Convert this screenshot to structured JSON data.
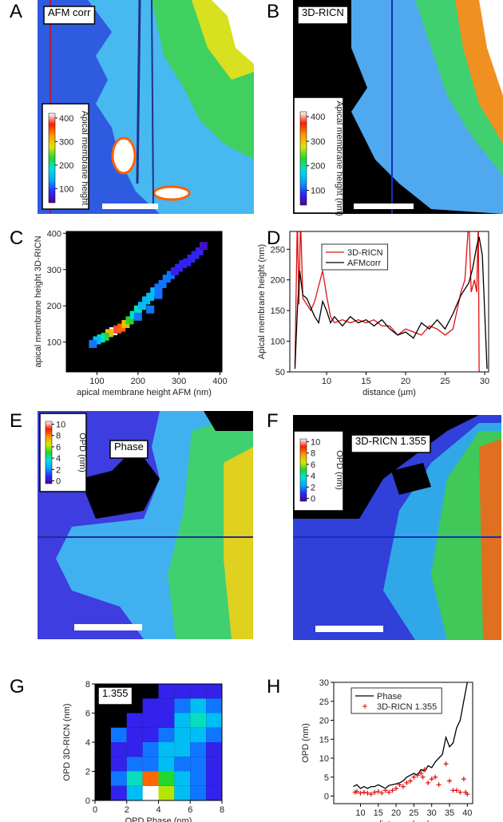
{
  "colormap": [
    "#50009a",
    "#2b2bff",
    "#00a8ff",
    "#00e0e0",
    "#20d830",
    "#d8e800",
    "#ff9a00",
    "#ff1a00",
    "#ffffff"
  ],
  "images": [
    {
      "panel": "A",
      "label": "AFM corr",
      "colorbar": {
        "label": "Apical membrane height",
        "lim": [
          40,
          420
        ],
        "ticks": [
          100,
          200,
          300,
          400
        ]
      }
    },
    {
      "panel": "B",
      "label": "3D-RICN",
      "colorbar": {
        "label": "Apical membrane height (nm)",
        "lim": [
          40,
          420
        ],
        "ticks": [
          100,
          200,
          300,
          400
        ]
      }
    },
    {
      "panel": "E",
      "label": "Phase",
      "colorbar": {
        "label": "OPD (nm)",
        "lim": [
          -0.5,
          10.5
        ],
        "ticks": [
          0,
          2,
          4,
          6,
          8,
          10
        ]
      }
    },
    {
      "panel": "F",
      "label": "3D-RICN 1.355",
      "colorbar": {
        "label": "OPD (nm)",
        "lim": [
          -0.5,
          10.5
        ],
        "ticks": [
          0,
          2,
          4,
          6,
          8,
          10
        ]
      }
    }
  ],
  "chart_data": [
    {
      "panel": "C",
      "type": "scatter",
      "x_label": "apical membrane height AFM (nm)",
      "y_label": "apical membrane height 3D-RICN",
      "x": [
        140,
        150,
        160,
        130,
        170,
        120,
        110,
        180,
        190,
        200,
        210,
        220,
        230,
        240,
        250,
        260,
        270,
        280,
        290,
        300,
        310,
        320,
        330,
        340,
        350,
        360,
        100,
        90,
        200,
        230,
        250
      ],
      "values": [
        130,
        135,
        140,
        125,
        150,
        115,
        110,
        160,
        175,
        190,
        200,
        215,
        225,
        240,
        250,
        260,
        275,
        285,
        295,
        305,
        315,
        320,
        330,
        340,
        350,
        365,
        105,
        95,
        170,
        190,
        230
      ],
      "density": [
        10,
        9,
        8,
        7,
        7,
        5,
        4,
        5,
        4,
        4,
        3,
        3,
        3,
        3,
        2,
        2,
        2,
        2,
        1,
        1,
        1,
        1,
        1,
        1,
        1,
        0.5,
        3,
        2,
        2,
        2,
        2
      ],
      "xlim": [
        25,
        405
      ],
      "ylim": [
        18,
        405
      ],
      "xticks": [
        100,
        200,
        300,
        400
      ],
      "yticks": [
        100,
        200,
        300,
        400
      ]
    },
    {
      "panel": "D",
      "type": "line",
      "x_label": "distance (µm)",
      "y_label": "Apical membrane height (nm)",
      "series": [
        {
          "name": "3D-RICN",
          "color": "#e01010",
          "x": [
            6.0,
            6.3,
            6.5,
            6.7,
            7,
            7.5,
            8,
            8.5,
            9,
            9.5,
            10,
            10.5,
            11,
            12,
            13,
            14,
            15,
            16,
            17,
            18,
            19,
            20,
            21,
            22,
            23,
            24,
            25,
            26,
            27,
            27.5,
            28,
            28.3,
            28.7,
            29,
            29.2,
            29.3
          ],
          "values": [
            60,
            300,
            160,
            300,
            170,
            160,
            150,
            165,
            190,
            215,
            175,
            140,
            130,
            135,
            130,
            135,
            130,
            135,
            125,
            125,
            110,
            120,
            115,
            110,
            125,
            120,
            110,
            120,
            180,
            200,
            300,
            180,
            200,
            180,
            300,
            50
          ]
        },
        {
          "name": "AFMcorr",
          "color": "#000000",
          "x": [
            6.0,
            6.3,
            6.6,
            7,
            7.5,
            8,
            8.5,
            9,
            9.5,
            10,
            10.5,
            11,
            12,
            13,
            14,
            15,
            16,
            17,
            18,
            19,
            20,
            21,
            22,
            23,
            24,
            25,
            26,
            27,
            28,
            28.5,
            29,
            29.3,
            29.7,
            30,
            30.3
          ],
          "values": [
            55,
            150,
            215,
            175,
            170,
            155,
            140,
            130,
            165,
            150,
            130,
            140,
            125,
            140,
            130,
            135,
            125,
            135,
            120,
            110,
            115,
            105,
            130,
            120,
            135,
            120,
            145,
            175,
            195,
            220,
            255,
            270,
            240,
            150,
            55
          ]
        }
      ],
      "xlim": [
        5.35,
        30.5
      ],
      "ylim": [
        50,
        279
      ],
      "xticks": [
        10,
        15,
        20,
        25,
        30
      ],
      "yticks": [
        50,
        100,
        150,
        200,
        250
      ]
    },
    {
      "panel": "G",
      "type": "heatmap",
      "label": "1.355",
      "x_label": "OPD Phase (nm)",
      "y_label": "OPD 3D-RICN (nm)",
      "xbins": [
        0,
        1,
        2,
        3,
        4,
        5,
        6,
        7,
        8
      ],
      "ybins": [
        0,
        1,
        2,
        3,
        4,
        5,
        6,
        7,
        8
      ],
      "z": [
        [
          0,
          1,
          3,
          10,
          6,
          3,
          2,
          1
        ],
        [
          0,
          2,
          4,
          8,
          5,
          3,
          2,
          1
        ],
        [
          0,
          1,
          2,
          2,
          3,
          2,
          2,
          1
        ],
        [
          0,
          1,
          1,
          2,
          3,
          3,
          2,
          1
        ],
        [
          0,
          2,
          1,
          1,
          2,
          3,
          3,
          2
        ],
        [
          0,
          0,
          1,
          1,
          1,
          3,
          4,
          3
        ],
        [
          0,
          0,
          0,
          1,
          1,
          2,
          3,
          2
        ],
        [
          0,
          0,
          0,
          0,
          1,
          1,
          1,
          1
        ]
      ],
      "xlim": [
        0,
        8
      ],
      "ylim": [
        0,
        8
      ],
      "xticks": [
        0,
        2,
        4,
        6,
        8
      ],
      "yticks": [
        0,
        2,
        4,
        6,
        8
      ]
    },
    {
      "panel": "H",
      "type": "line",
      "x_label": "distance (µm)",
      "y_label": "OPD (nm)",
      "series": [
        {
          "name": "Phase",
          "color": "#000000",
          "marker": "line",
          "x": [
            8,
            9,
            10,
            11,
            12,
            13,
            14,
            15,
            16,
            17,
            18,
            19,
            20,
            21,
            22,
            23,
            24,
            25,
            26,
            27,
            28,
            29,
            30,
            31,
            32,
            33,
            34,
            35,
            36,
            37,
            38,
            39,
            40
          ],
          "values": [
            2.5,
            3,
            2,
            2.5,
            2,
            2.5,
            2.5,
            3,
            2.5,
            2,
            2.8,
            3,
            3.2,
            3.5,
            4,
            5,
            5.5,
            6,
            5.5,
            7,
            6.5,
            8,
            7.5,
            9,
            10,
            11,
            15.5,
            13,
            14,
            18,
            20,
            25,
            30
          ]
        },
        {
          "name": "3D-RICN 1.355",
          "color": "#e01010",
          "marker": "plus",
          "x": [
            8.5,
            9,
            10,
            11,
            12,
            13,
            14,
            15,
            16,
            17,
            18,
            19,
            20,
            21,
            22,
            23,
            24,
            25,
            26,
            27,
            27.5,
            28,
            29,
            30,
            31,
            32,
            34,
            35,
            36,
            37,
            38,
            39,
            39.5,
            40
          ],
          "values": [
            1,
            1.2,
            0.8,
            1,
            0.8,
            0.5,
            1,
            1.2,
            0.8,
            1.5,
            1,
            1.5,
            2,
            3,
            2.5,
            3.5,
            4,
            5,
            5.5,
            6,
            5,
            7,
            3.5,
            4.5,
            5,
            3,
            8.5,
            4,
            1.5,
            1.5,
            1,
            4.5,
            1,
            0.5
          ]
        }
      ],
      "xlim": [
        2.5,
        41.5
      ],
      "ylim": [
        -2,
        30
      ],
      "xticks": [
        10,
        15,
        20,
        25,
        30,
        35,
        40
      ],
      "yticks": [
        0,
        5,
        10,
        15,
        20,
        25,
        30
      ]
    }
  ]
}
